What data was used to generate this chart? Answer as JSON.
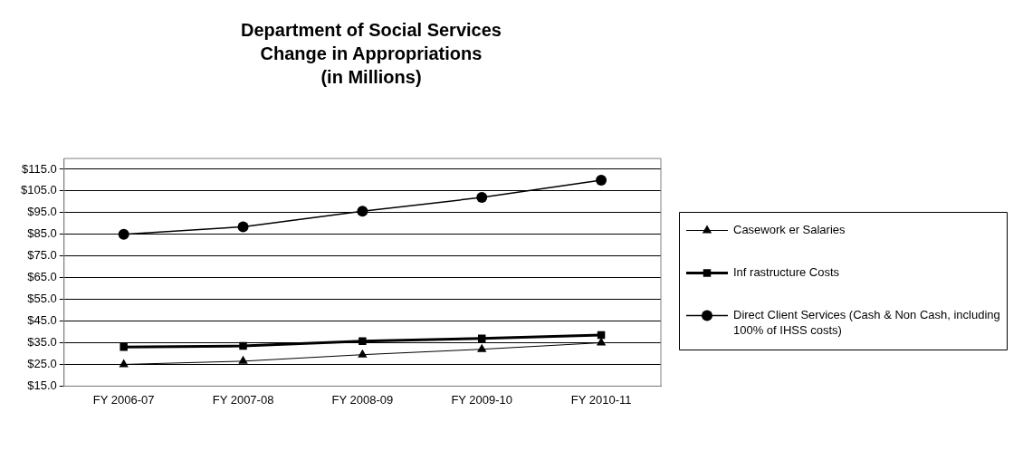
{
  "chart_data": {
    "type": "line",
    "title": "Department of Social Services\nChange in Appropriations\n(in Millions)",
    "categories": [
      "FY 2006-07",
      "FY 2007-08",
      "FY 2008-09",
      "FY 2009-10",
      "FY 2010-11"
    ],
    "series": [
      {
        "name": "Casework er Salaries",
        "color": "#000000",
        "marker": "triangle",
        "values": [
          25,
          26.5,
          29.5,
          32,
          35
        ]
      },
      {
        "name": "Inf rastructure Costs",
        "color": "#000000",
        "marker": "square",
        "values": [
          33,
          33.5,
          35.7,
          37,
          38.6
        ]
      },
      {
        "name": "Direct Client Services (Cash & Non Cash, including 100% of IHSS costs)",
        "color": "#000000",
        "marker": "circle",
        "values": [
          85,
          88.5,
          95.7,
          102,
          110
        ]
      }
    ],
    "ylim": [
      15,
      120
    ],
    "yticks": [
      {
        "value": 15,
        "label": "$15.0"
      },
      {
        "value": 25,
        "label": "$25.0"
      },
      {
        "value": 35,
        "label": "$35.0"
      },
      {
        "value": 45,
        "label": "$45.0"
      },
      {
        "value": 55,
        "label": "$55.0"
      },
      {
        "value": 65,
        "label": "$65.0"
      },
      {
        "value": 75,
        "label": "$75.0"
      },
      {
        "value": 85,
        "label": "$85.0"
      },
      {
        "value": 95,
        "label": "$95.0"
      },
      {
        "value": 105,
        "label": "$105.0"
      },
      {
        "value": 115,
        "label": "$115.0"
      }
    ],
    "grid": "y",
    "legend": "right",
    "line_style": "solid"
  }
}
